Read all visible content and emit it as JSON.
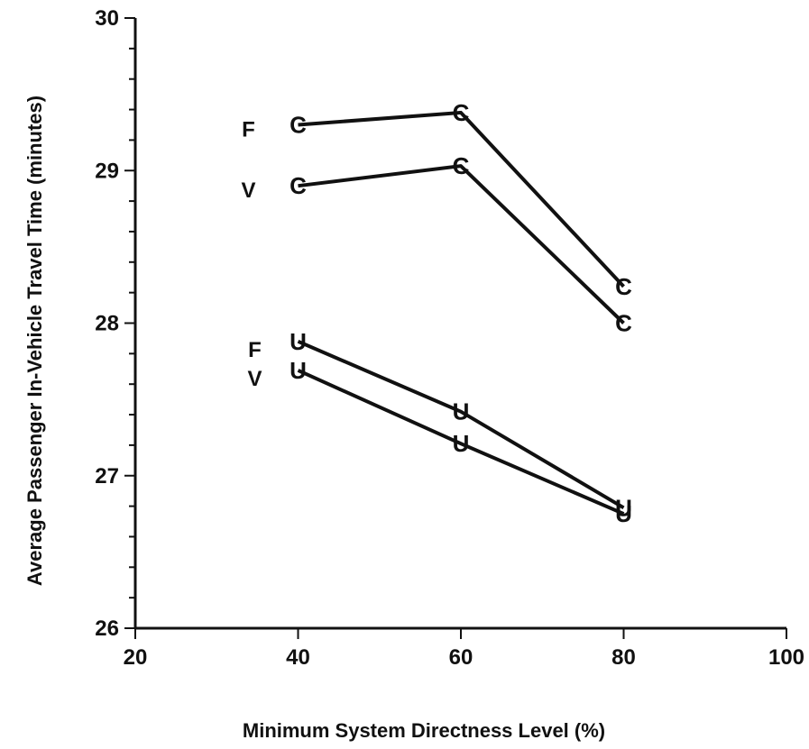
{
  "chart_data": {
    "type": "line",
    "xlabel": "Minimum System Directness Level  (%)",
    "ylabel": "Average Passenger In-Vehicle Travel Time (minutes)",
    "xlim": [
      20,
      100
    ],
    "ylim": [
      26,
      30
    ],
    "xticks": [
      20,
      40,
      60,
      80,
      100
    ],
    "yticks": [
      26,
      27,
      28,
      29,
      30
    ],
    "grid": false,
    "legend": "none",
    "series": [
      {
        "label": "F",
        "marker": "C",
        "x": [
          40,
          60,
          80
        ],
        "y": [
          29.3,
          29.38,
          28.24
        ]
      },
      {
        "label": "V",
        "marker": "C",
        "x": [
          40,
          60,
          80
        ],
        "y": [
          28.9,
          29.03,
          28.0
        ]
      },
      {
        "label": "F",
        "marker": "U",
        "x": [
          40,
          60,
          80
        ],
        "y": [
          27.88,
          27.42,
          26.79
        ]
      },
      {
        "label": "V",
        "marker": "U",
        "x": [
          40,
          60,
          80
        ],
        "y": [
          27.69,
          27.21,
          26.75
        ]
      }
    ]
  }
}
